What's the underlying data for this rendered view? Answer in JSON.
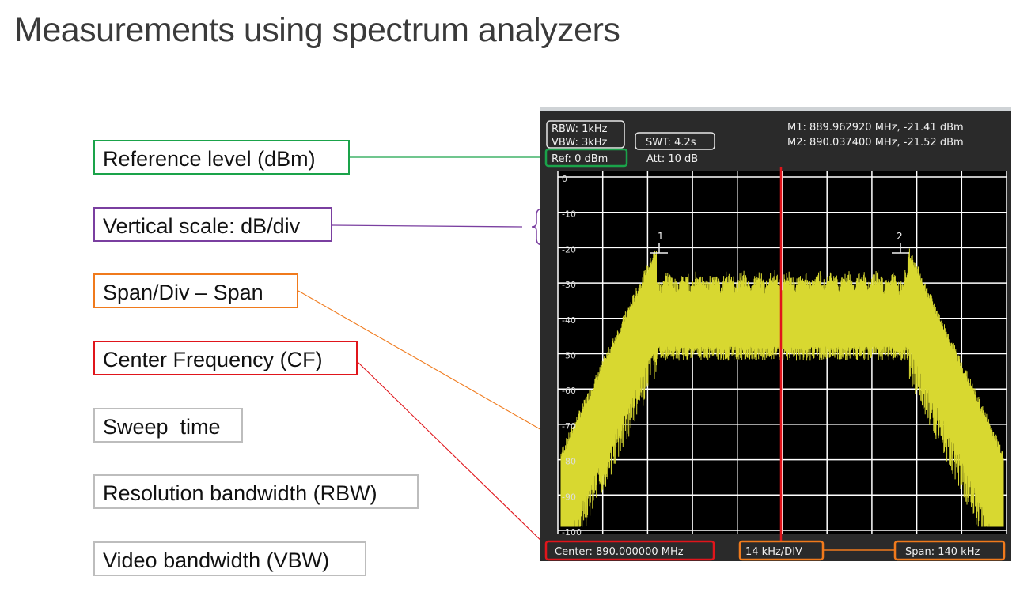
{
  "title": "Measurements using spectrum analyzers",
  "callouts": {
    "ref_level": "Reference level (dBm)",
    "vertical_scale": "Vertical scale: dB/div",
    "span_div": "Span/Div – Span",
    "center_freq": "Center Frequency (CF)",
    "sweep_time": "Sweep  time",
    "rbw": "Resolution bandwidth (RBW)",
    "vbw": "Video bandwidth (VBW)"
  },
  "colors": {
    "ref_level": "#1aa34a",
    "vertical_scale": "#7a3fa0",
    "span_div": "#f07a1c",
    "center_freq": "#e0151b",
    "neutral": "#bdbdbd",
    "trace": "#d8d830",
    "grid": "#ffffff"
  },
  "screen": {
    "rbw": "RBW: 1kHz",
    "vbw": "VBW: 3kHz",
    "swt": "SWT: 4.2s",
    "ref": "Ref: 0 dBm",
    "att": "Att: 10 dB",
    "m1": "M1: 889.962920 MHz, -21.41 dBm",
    "m2": "M2: 890.037400 MHz, -21.52 dBm",
    "center": "Center: 890.000000 MHz",
    "div": "14 kHz/DIV",
    "span": "Span: 140 kHz",
    "marker1": "1",
    "marker2": "2",
    "y_ticks": [
      "0",
      "-10",
      "-20",
      "-30",
      "-40",
      "-50",
      "-60",
      "-70",
      "-80",
      "-90",
      "-100"
    ]
  }
}
